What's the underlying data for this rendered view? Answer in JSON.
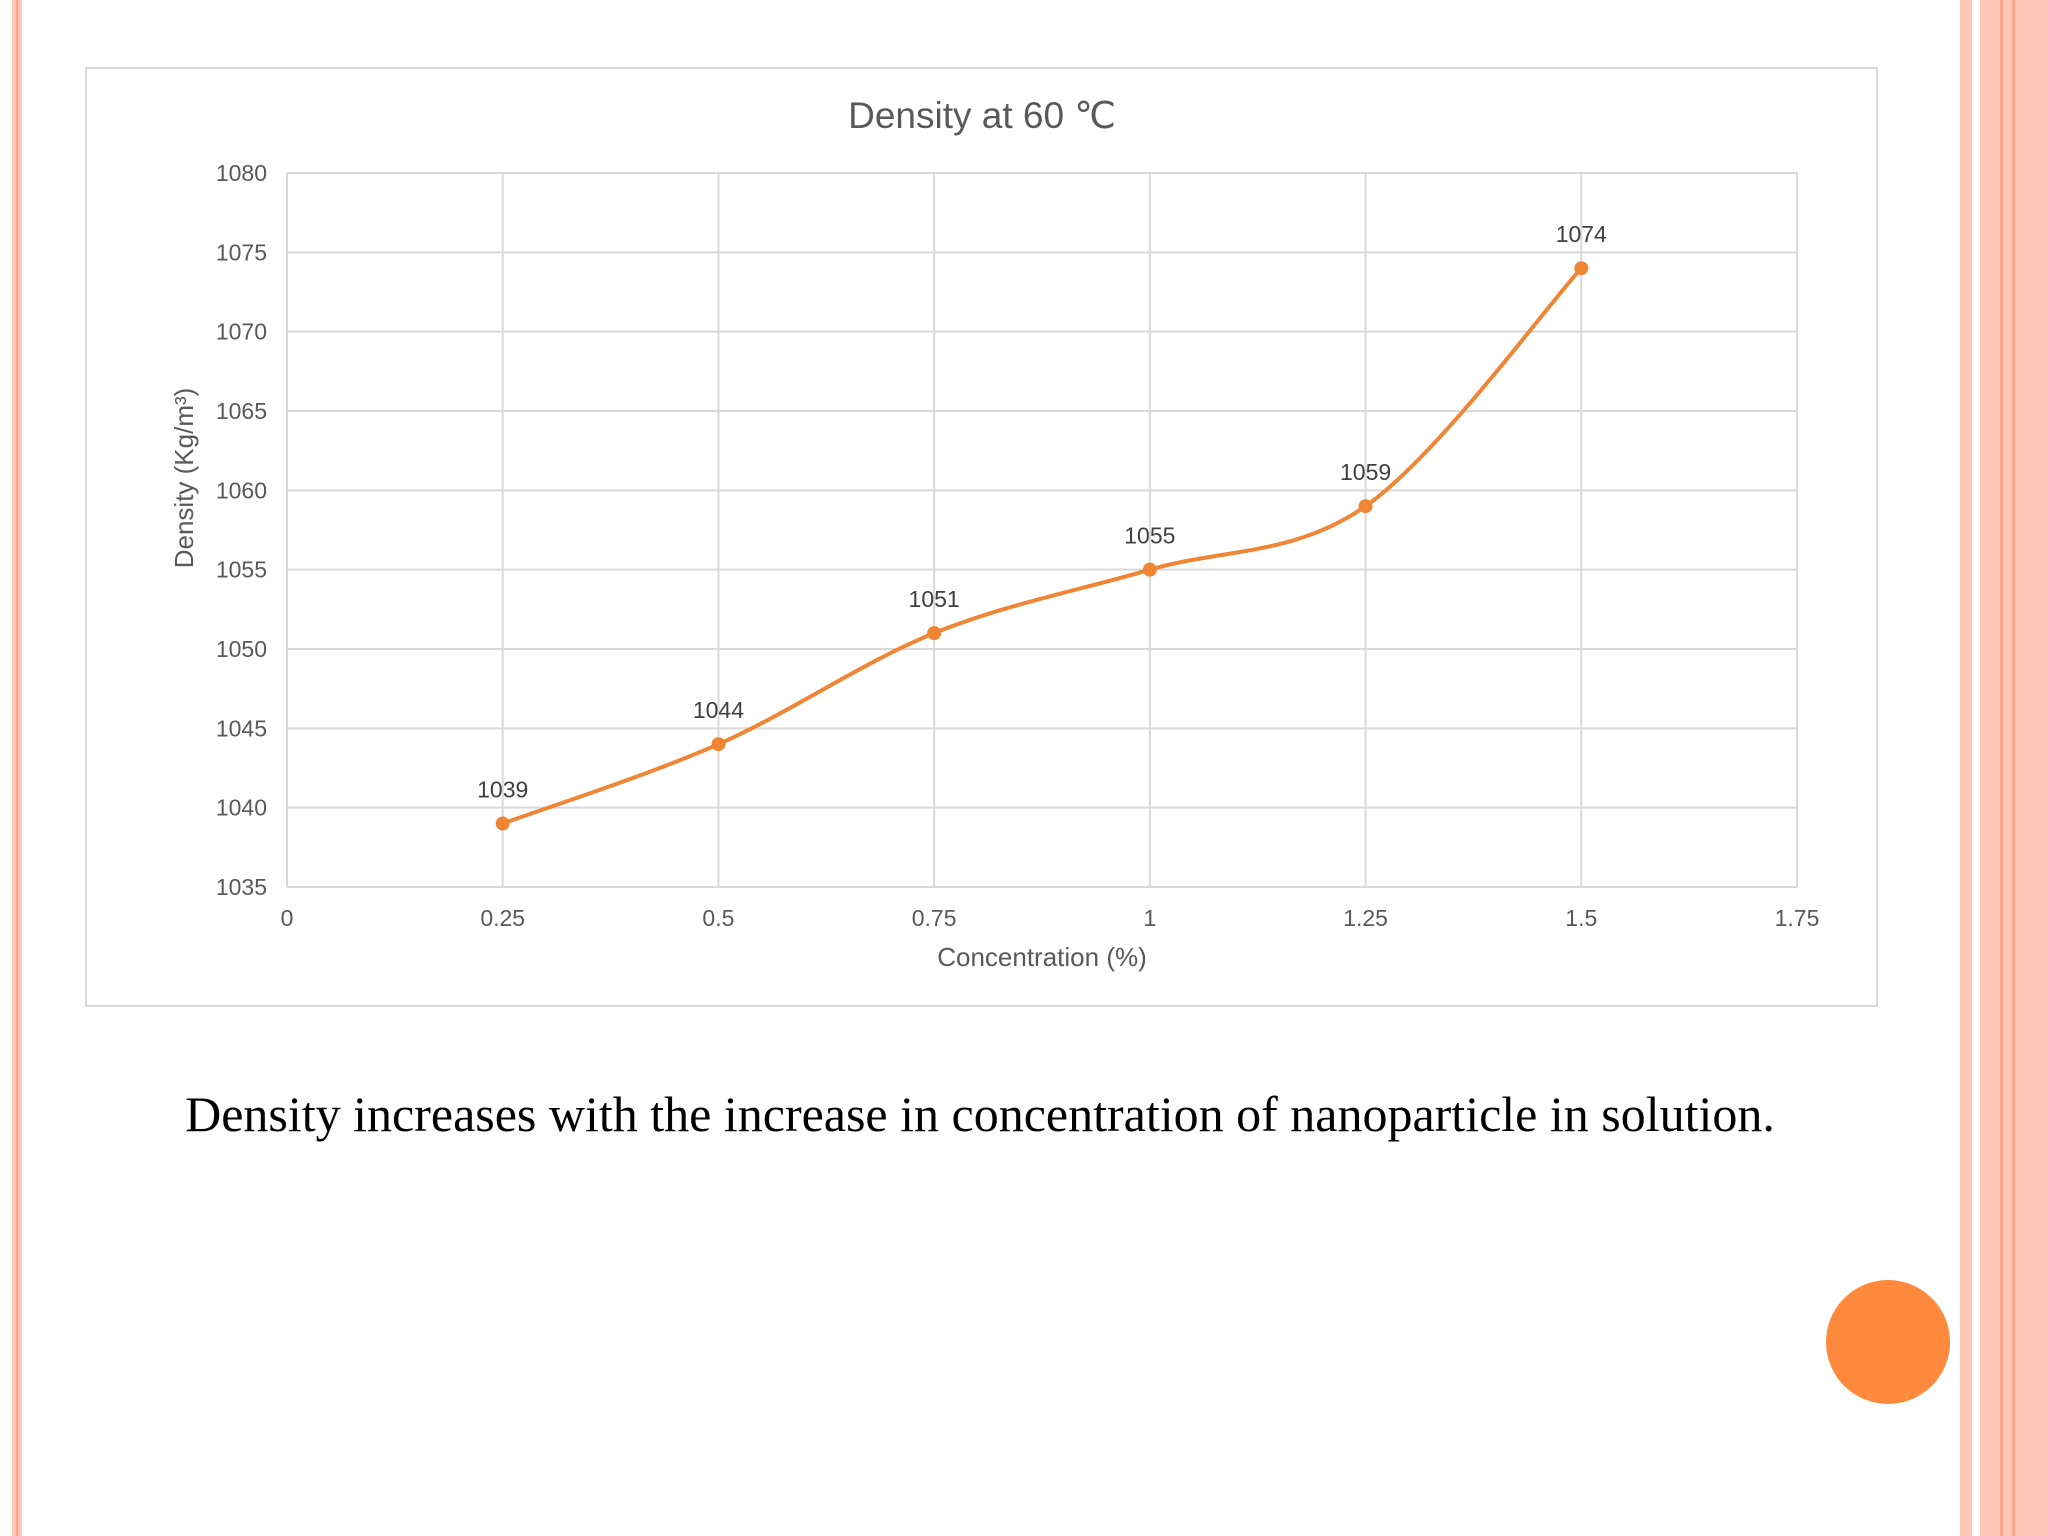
{
  "colors": {
    "accent": "#ff8a3d",
    "series": "#f08535",
    "frame_stripe": "#fdc8b5",
    "frame_line": "#f9a88a",
    "grid": "#d9d9d9",
    "text": "#595959"
  },
  "chart_data": {
    "type": "line",
    "title": "Density at 60 ℃",
    "xlabel": "Concentration (%)",
    "ylabel": "Density (Kg/m³)",
    "xlim": [
      0,
      1.75
    ],
    "ylim": [
      1035,
      1080
    ],
    "x_ticks": [
      0,
      0.25,
      0.5,
      0.75,
      1,
      1.25,
      1.5,
      1.75
    ],
    "y_ticks": [
      1035,
      1040,
      1045,
      1050,
      1055,
      1060,
      1065,
      1070,
      1075,
      1080
    ],
    "grid": true,
    "smooth": true,
    "series": [
      {
        "name": "Density",
        "x": [
          0.25,
          0.5,
          0.75,
          1,
          1.25,
          1.5
        ],
        "values": [
          1039,
          1044,
          1051,
          1055,
          1059,
          1074
        ],
        "data_labels": [
          "1039",
          "1044",
          "1051",
          "1055",
          "1059",
          "1074"
        ]
      }
    ]
  },
  "caption": "Density increases with the increase in concentration of nanoparticle in solution."
}
